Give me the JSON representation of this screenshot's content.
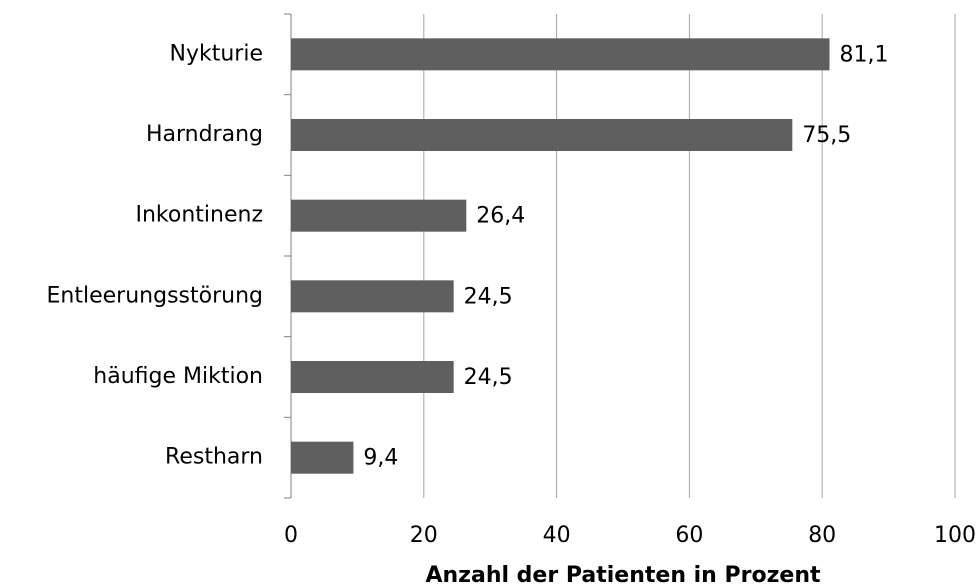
{
  "chart_data": {
    "type": "bar",
    "orientation": "horizontal",
    "x_label": "Anzahl der Patienten in Prozent",
    "categories": [
      "Nykturie",
      "Harndrang",
      "Inkontinenz",
      "Entleerungsstörung",
      "häufige Miktion",
      "Restharn"
    ],
    "values": [
      81.1,
      75.5,
      26.4,
      24.5,
      24.5,
      9.4
    ],
    "value_labels": [
      "81,1",
      "75,5",
      "26,4",
      "24,5",
      "24,5",
      "9,4"
    ],
    "color": "#5f5f5f",
    "xlim": [
      0,
      100
    ],
    "xticks": [
      0,
      20,
      40,
      60,
      80,
      100
    ],
    "grid": true
  }
}
